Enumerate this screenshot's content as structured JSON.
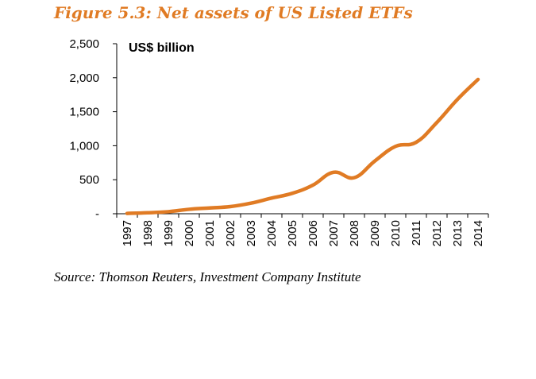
{
  "figure_title": "Figure 5.3: Net assets of US Listed ETFs",
  "source_note": "Source: Thomson Reuters, Investment Company Institute",
  "colors": {
    "line": "#e07b24",
    "title": "#e07b24",
    "axis": "#000000"
  },
  "chart_data": {
    "type": "line",
    "title": "",
    "unit_label": "US$ billion",
    "xlabel": "",
    "ylabel": "",
    "ylim": [
      0,
      2500
    ],
    "y_ticks": [
      0,
      500,
      1000,
      1500,
      2000,
      2500
    ],
    "y_tick_labels": [
      "-",
      "500",
      "1,000",
      "1,500",
      "2,000",
      "2,500"
    ],
    "categories": [
      "1997",
      "1998",
      "1999",
      "2000",
      "2001",
      "2002",
      "2003",
      "2004",
      "2005",
      "2006",
      "2007",
      "2008",
      "2009",
      "2010",
      "2011",
      "2012",
      "2013",
      "2014"
    ],
    "values": [
      5,
      15,
      30,
      65,
      85,
      105,
      155,
      230,
      300,
      420,
      610,
      530,
      775,
      990,
      1050,
      1340,
      1680,
      1975
    ],
    "grid": false,
    "legend": "none"
  }
}
